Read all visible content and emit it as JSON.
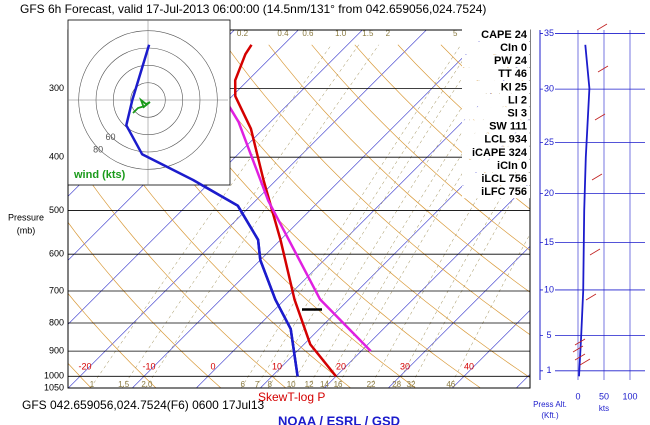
{
  "title": "GFS 6h Forecast, valid 17-Jul-2013 06:00:00 (14.5nm/131° from 042.659056,024.7524)",
  "footer": "GFS 042.659056,024.7524(F6) 0600 17Jul13",
  "plot_label": "SkewT-log P",
  "org": "NOAA / ESRL / GSD",
  "chart_data": {
    "type": "skewt",
    "ylabel": "Pressure",
    "yunit": "(mb)",
    "ylim": [
      1050,
      235
    ],
    "log_y": true,
    "yticks": [
      1050,
      1000,
      900,
      800,
      700,
      600,
      500,
      400,
      300
    ],
    "xticks": [
      -20,
      -10,
      0,
      10,
      20,
      30,
      40
    ],
    "mixing_ratio_top": [
      0.2,
      0.4,
      0.6,
      {
        "value": 1,
        "label": "1.0"
      },
      1.5,
      2,
      5,
      6
    ],
    "mixing_ratio_bottom": [
      1,
      1.5,
      {
        "value": 2,
        "label": "2.0"
      },
      6,
      7,
      8,
      10,
      12,
      14,
      16,
      22,
      28,
      32,
      46
    ],
    "series": [
      {
        "color": "#d40000",
        "pressure": [
          1000,
          875,
          725,
          565,
          440,
          355,
          310,
          290,
          260,
          250
        ],
        "values": [
          20,
          11,
          1.5,
          -10,
          -22,
          -32,
          -39.5,
          -42,
          -44.5,
          -45
        ]
      },
      {
        "color": "#1c1ccc",
        "pressure": [
          1000,
          820,
          725,
          615,
          565,
          490,
          440,
          395,
          350,
          315,
          250
        ],
        "values": [
          14,
          5.5,
          -1.5,
          -10,
          -13.5,
          -22,
          -33,
          -45,
          -52,
          -55,
          -61
        ]
      },
      {
        "color": "#e020e0",
        "pressure": [
          900,
          725,
          480,
          345,
          235
        ],
        "values": [
          21.5,
          5.5,
          -18,
          -35,
          -58
        ]
      }
    ],
    "hodograph": {
      "label": "wind (kts)",
      "rings": [
        60,
        80
      ]
    },
    "indices": [
      "CAPE 24",
      "CIn 0",
      "PW 24",
      "TT 46",
      "KI 25",
      "LI 2",
      "SI 3",
      "SW 111",
      "LCL 934",
      "iCAPE 324",
      "iCIn 0",
      "iLCL 756",
      "iLFC 756"
    ],
    "y2label": "Press Alt.",
    "y2unit": "(Kft.)",
    "y2ticks": [
      1,
      5,
      10,
      15,
      20,
      25,
      30,
      35
    ],
    "speed_label": "kts",
    "speed_ticks": [
      0,
      50,
      100
    ],
    "speed": {
      "color": "#1c1ccc",
      "pressure": [
        1000,
        850,
        700,
        500,
        400,
        300,
        250
      ],
      "values": [
        2,
        6,
        10,
        12,
        15,
        22,
        14
      ]
    }
  }
}
